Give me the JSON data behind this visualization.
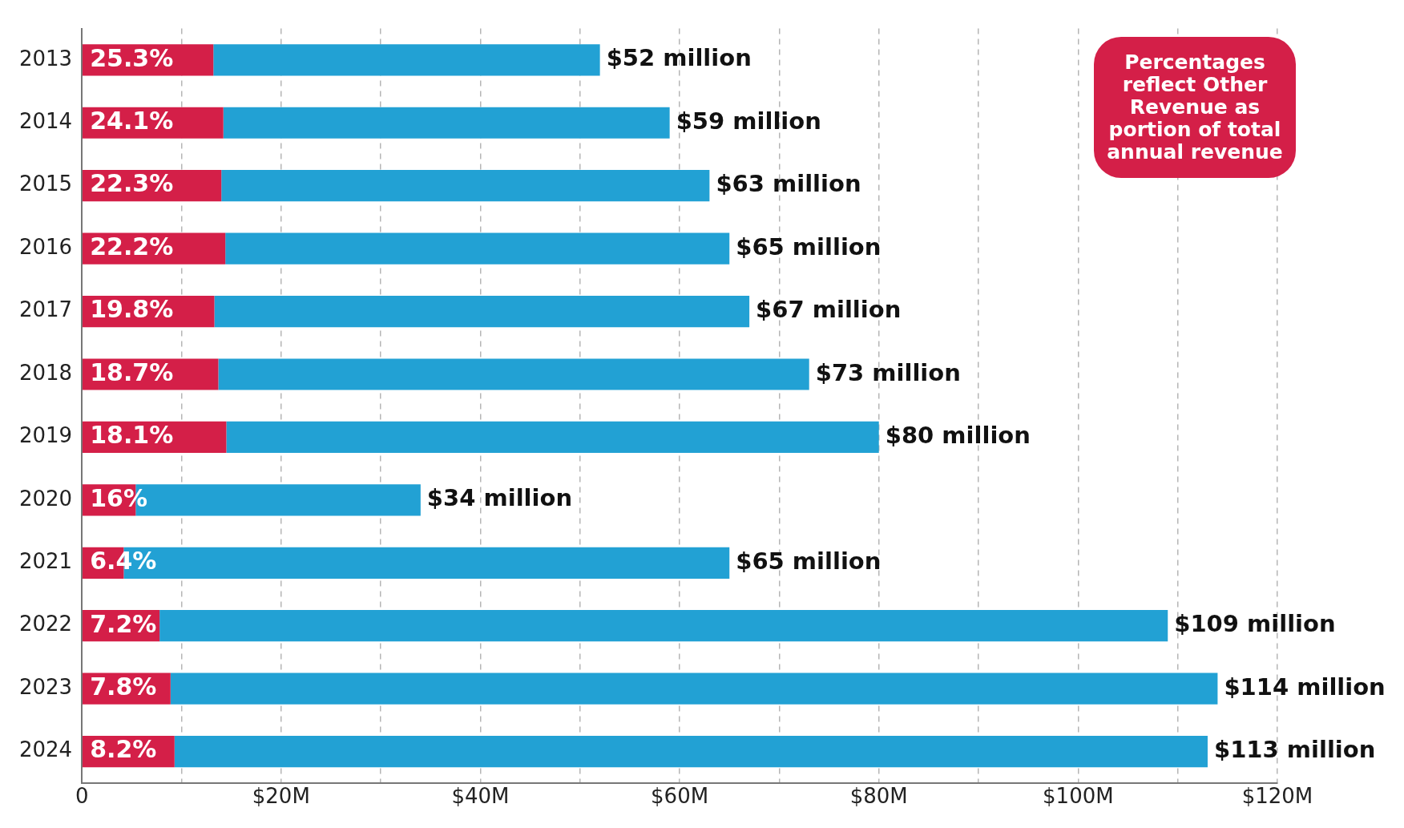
{
  "chart_data": {
    "type": "bar",
    "orientation": "horizontal",
    "stacked": true,
    "categories": [
      "2013",
      "2014",
      "2015",
      "2016",
      "2017",
      "2018",
      "2019",
      "2020",
      "2021",
      "2022",
      "2023",
      "2024"
    ],
    "series": [
      {
        "color": "#d41f48",
        "values": [
          13.2,
          14.2,
          14.0,
          14.4,
          13.3,
          13.7,
          14.5,
          5.4,
          4.2,
          7.8,
          8.9,
          9.3
        ]
      },
      {
        "color": "#22a1d4",
        "values": [
          38.8,
          44.8,
          49.0,
          50.6,
          53.7,
          59.3,
          65.5,
          28.6,
          60.8,
          101.2,
          105.1,
          103.7
        ]
      }
    ],
    "totals": [
      "$52 million",
      "$59 million",
      "$63 million",
      "$65 million",
      "$67 million",
      "$73 million",
      "$80 million",
      "$34 million",
      "$65 million",
      "$109 million",
      "$114 million",
      "$113 million"
    ],
    "xlim": [
      0,
      120
    ],
    "xticks": [
      0,
      {
        "value": 10,
        "label": null
      },
      {
        "value": 20,
        "label": "$20M"
      },
      {
        "value": 30,
        "label": null
      },
      {
        "value": 40,
        "label": "$40M"
      },
      {
        "value": 50,
        "label": null
      },
      {
        "value": 60,
        "label": "$60M"
      },
      {
        "value": 70,
        "label": null
      },
      {
        "value": 80,
        "label": "$80M"
      },
      {
        "value": 90,
        "label": null
      },
      {
        "value": 100,
        "label": "$100M"
      },
      {
        "value": 110,
        "label": null
      },
      {
        "value": 120,
        "label": "$120M"
      }
    ],
    "grid": "x",
    "legend": false,
    "annotations": [
      "Percentages reflect Other Revenue as portion of total annual revenue",
      "25.3%",
      "24.1%",
      "22.3%",
      "22.2%",
      "19.8%",
      "18.7%",
      "18.1%",
      "16%",
      "6.4%",
      "7.2%",
      "7.8%",
      "8.2%"
    ]
  }
}
